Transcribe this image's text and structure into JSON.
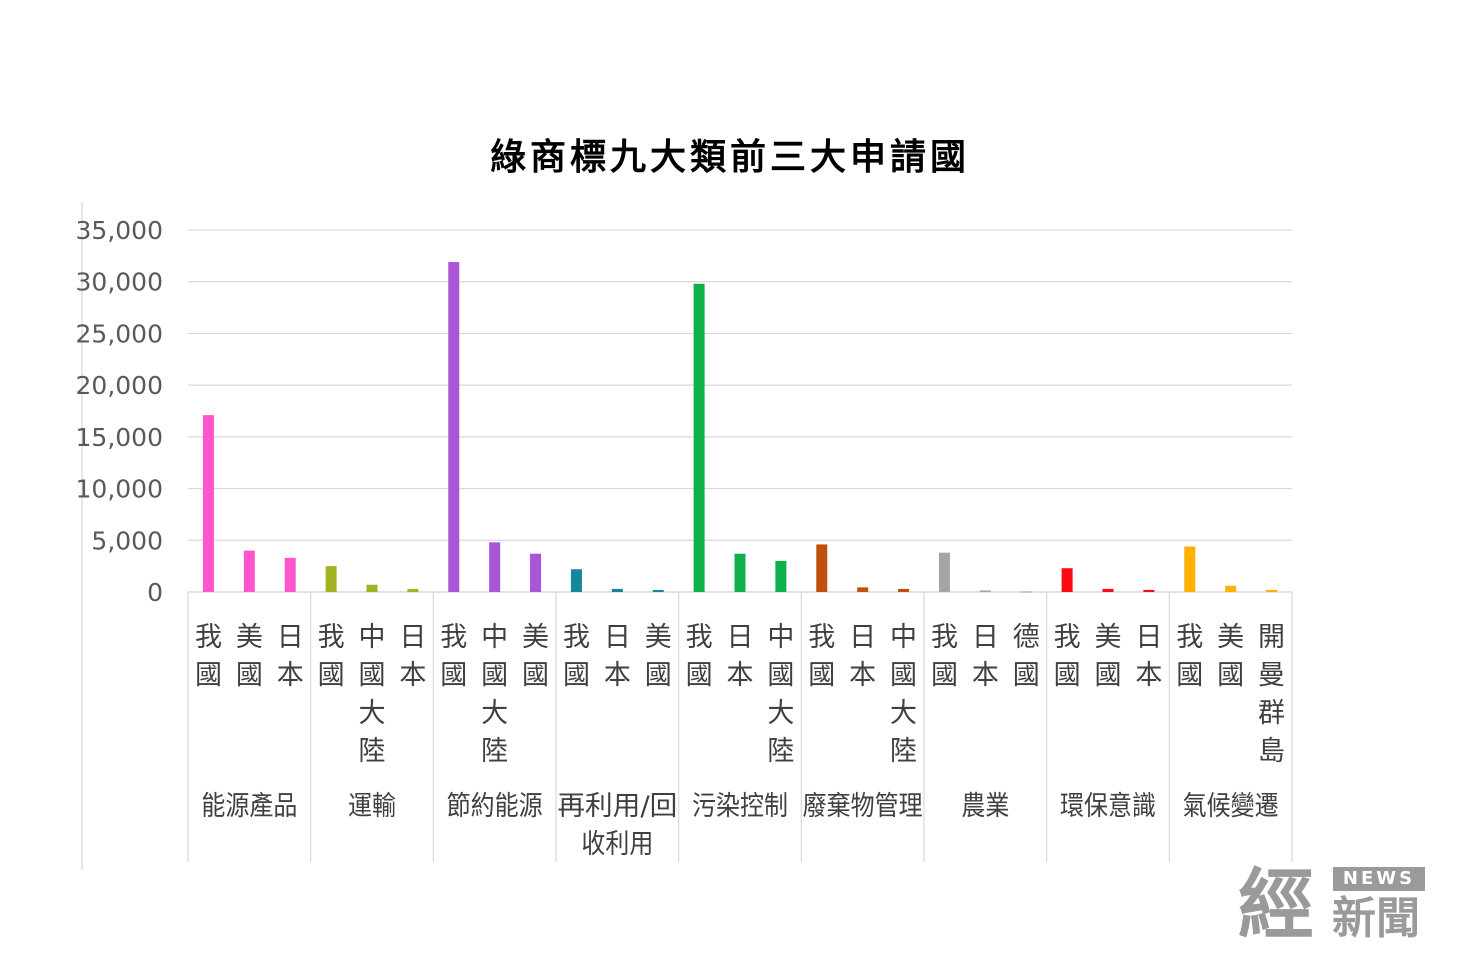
{
  "chart_data": {
    "type": "bar",
    "title": "綠商標九大類前三大申請國",
    "ylim": [
      0,
      35000
    ],
    "yticks": [
      "0",
      "5,000",
      "10,000",
      "15,000",
      "20,000",
      "25,000",
      "30,000",
      "35,000"
    ],
    "grid": true,
    "groups": [
      {
        "name": "能源產品",
        "color": "#ff55cc",
        "bars": [
          {
            "label": "我國",
            "value": 17100
          },
          {
            "label": "美國",
            "value": 4000
          },
          {
            "label": "日本",
            "value": 3300
          }
        ]
      },
      {
        "name": "運輸",
        "color": "#a4b322",
        "bars": [
          {
            "label": "我國",
            "value": 2500
          },
          {
            "label": "中國大陸",
            "value": 700
          },
          {
            "label": "日本",
            "value": 300
          }
        ]
      },
      {
        "name": "節約能源",
        "color": "#a855d6",
        "bars": [
          {
            "label": "我國",
            "value": 31900
          },
          {
            "label": "中國大陸",
            "value": 4800
          },
          {
            "label": "美國",
            "value": 3700
          }
        ]
      },
      {
        "name": "再利用/回收利用",
        "color": "#17869a",
        "bars": [
          {
            "label": "我國",
            "value": 2200
          },
          {
            "label": "日本",
            "value": 300
          },
          {
            "label": "美國",
            "value": 200
          }
        ]
      },
      {
        "name": "污染控制",
        "color": "#0eb04a",
        "bars": [
          {
            "label": "我國",
            "value": 29800
          },
          {
            "label": "日本",
            "value": 3700
          },
          {
            "label": "中國大陸",
            "value": 3000
          }
        ]
      },
      {
        "name": "廢棄物管理",
        "color": "#c0500e",
        "bars": [
          {
            "label": "我國",
            "value": 4600
          },
          {
            "label": "日本",
            "value": 450
          },
          {
            "label": "中國大陸",
            "value": 300
          }
        ]
      },
      {
        "name": "農業",
        "color": "#a5a5a5",
        "bars": [
          {
            "label": "我國",
            "value": 3800
          },
          {
            "label": "日本",
            "value": 150
          },
          {
            "label": "德國",
            "value": 50
          }
        ]
      },
      {
        "name": "環保意識",
        "color": "#ff0a14",
        "bars": [
          {
            "label": "我國",
            "value": 2300
          },
          {
            "label": "美國",
            "value": 300
          },
          {
            "label": "日本",
            "value": 200
          }
        ]
      },
      {
        "name": "氣候變遷",
        "color": "#ffb000",
        "bars": [
          {
            "label": "我國",
            "value": 4400
          },
          {
            "label": "美國",
            "value": 600
          },
          {
            "label": "開曼群島",
            "value": 200
          }
        ]
      }
    ]
  },
  "watermark": {
    "main": "經",
    "badge": "NEWS",
    "sub": "新聞"
  }
}
